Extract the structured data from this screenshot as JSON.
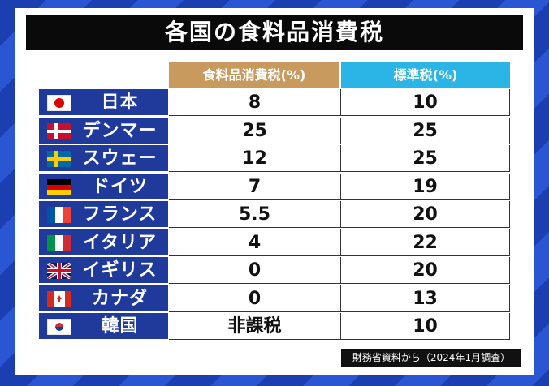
{
  "title": "各国の食料品消費税",
  "table": {
    "headers": [
      "食料品消費税(%)",
      "標準税(%)"
    ],
    "rows": [
      [
        "日本",
        8,
        10
      ],
      [
        "デンマーク",
        25,
        25
      ],
      [
        "スウェーデン",
        12,
        25
      ],
      [
        "ドイツ",
        7,
        19
      ],
      [
        "フランス",
        5.5,
        20
      ],
      [
        "イタリア",
        4,
        22
      ],
      [
        "イギリス",
        0,
        20
      ],
      [
        "カナダ",
        0,
        13
      ],
      [
        "韓国",
        "非課税",
        10
      ]
    ]
  },
  "footer": "財務省資料から（2024年1月調査）"
}
